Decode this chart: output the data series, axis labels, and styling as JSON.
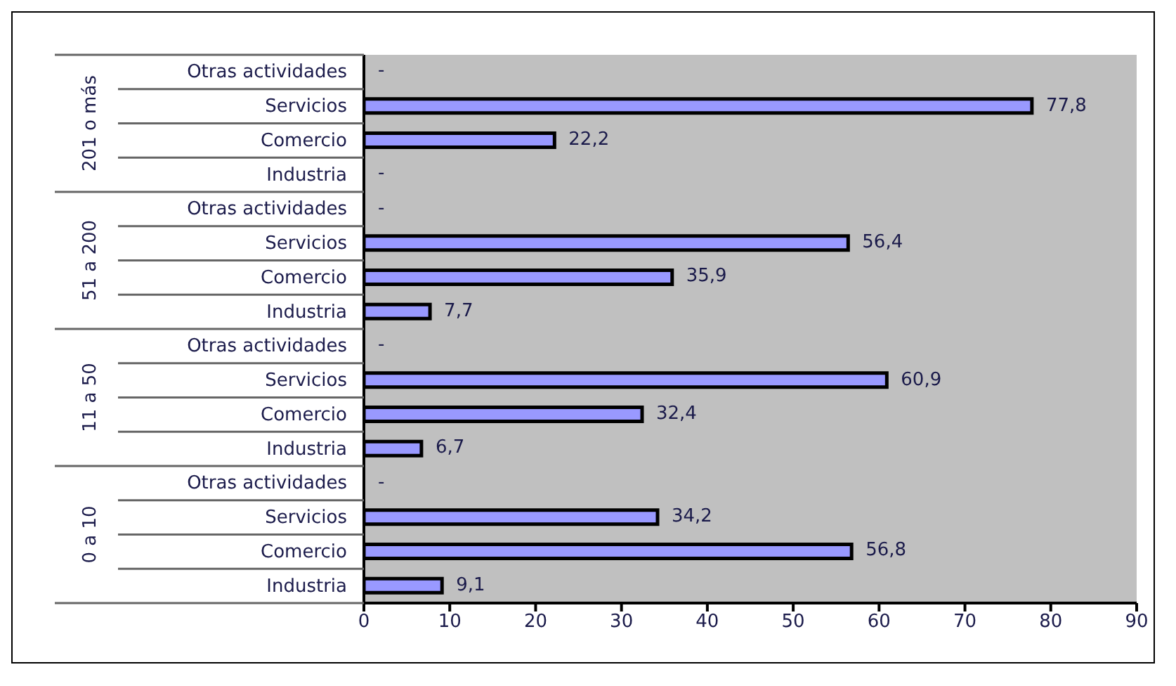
{
  "chart_data": {
    "type": "bar",
    "orientation": "horizontal",
    "categories": [
      "Otras actividades",
      "Servicios",
      "Comercio",
      "Industria",
      "Otras actividades",
      "Servicios",
      "Comercio",
      "Industria",
      "Otras actividades",
      "Servicios",
      "Comercio",
      "Industria",
      "Otras actividades",
      "Servicios",
      "Comercio",
      "Industria"
    ],
    "values": [
      null,
      77.8,
      22.2,
      null,
      null,
      56.4,
      35.9,
      7.7,
      null,
      60.9,
      32.4,
      6.7,
      null,
      34.2,
      56.8,
      9.1
    ],
    "value_labels": [
      "-",
      "77,8",
      "22,2",
      "-",
      "-",
      "56,4",
      "35,9",
      "7,7",
      "-",
      "60,9",
      "32,4",
      "6,7",
      "-",
      "34,2",
      "56,8",
      "9,1"
    ],
    "annotations": [
      "201 o más",
      "51 a 200",
      "11 a 50",
      "0 a 10"
    ],
    "color": "#9999ff",
    "xlim": [
      0,
      90
    ],
    "xticks": [
      0,
      10,
      20,
      30,
      40,
      50,
      60,
      70,
      80,
      90
    ],
    "grid": false,
    "legend": false
  }
}
